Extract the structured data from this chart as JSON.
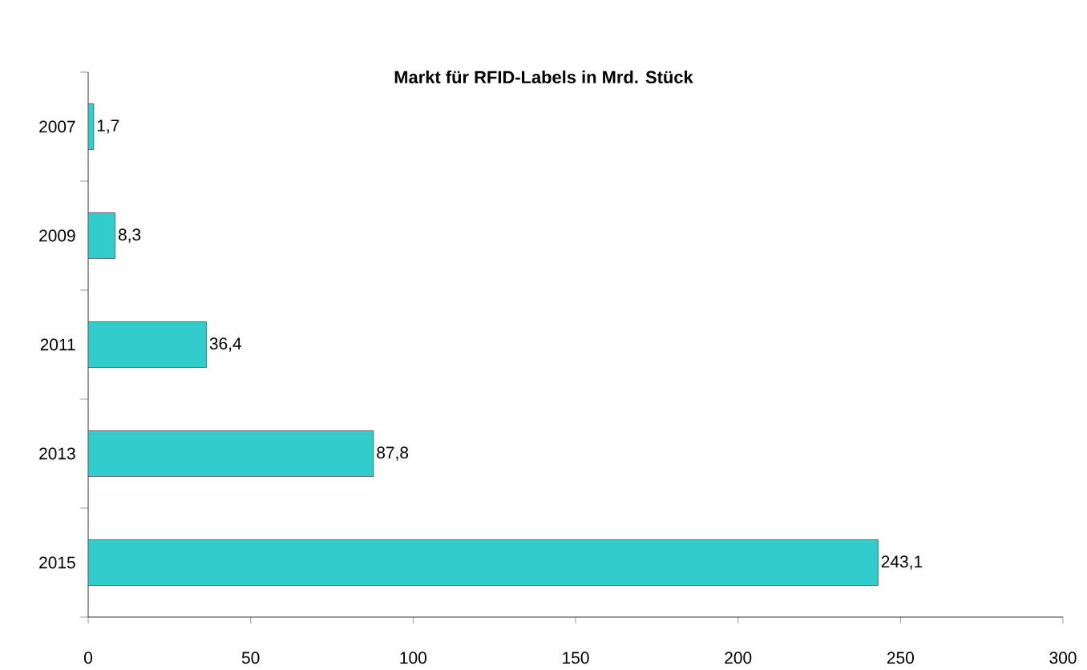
{
  "chart_data": {
    "type": "bar",
    "orientation": "horizontal",
    "title": "Markt für RFID-Labels in Mrd. Stück",
    "categories": [
      "2007",
      "2009",
      "2011",
      "2013",
      "2015"
    ],
    "values": [
      1.7,
      8.3,
      36.4,
      87.8,
      243.1
    ],
    "value_labels": [
      "1,7",
      "8,3",
      "36,4",
      "87,8",
      "243,1"
    ],
    "color": "#33cccc",
    "xlim": [
      0,
      300
    ],
    "xticks": [
      0,
      50,
      100,
      150,
      200,
      250,
      300
    ],
    "grid": false
  }
}
